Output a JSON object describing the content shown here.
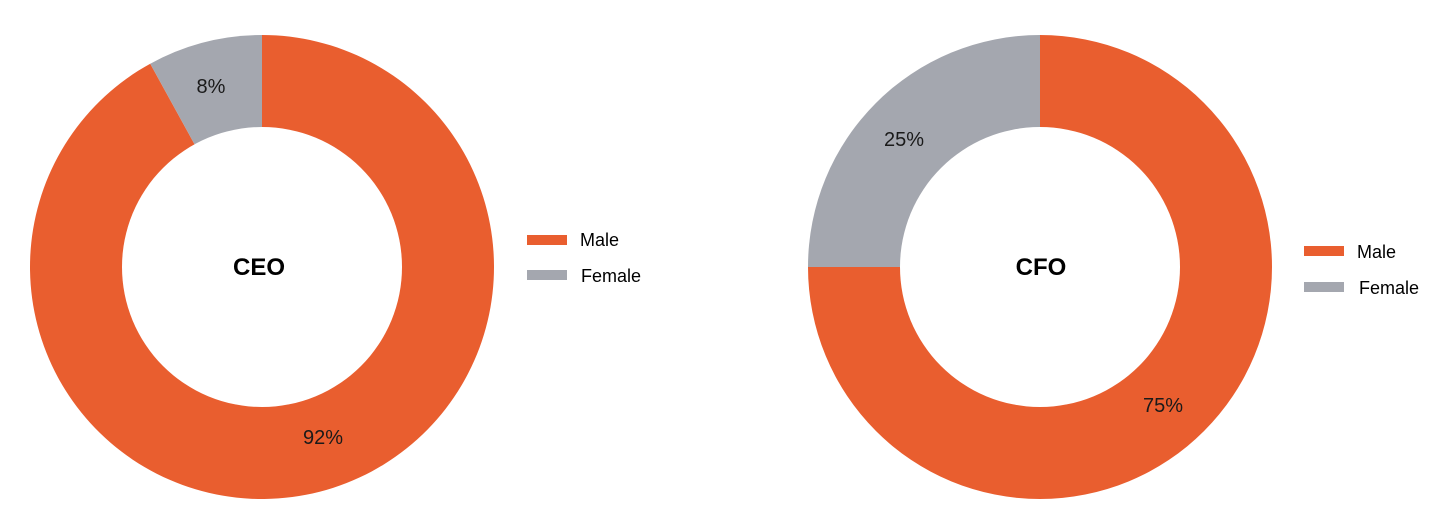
{
  "colors": {
    "male": "#E95E2F",
    "female": "#A4A7AF",
    "background": "#FFFFFF"
  },
  "chart_data": [
    {
      "type": "pie",
      "variant": "donut",
      "title": "CEO",
      "categories": [
        "Male",
        "Female"
      ],
      "values": [
        92,
        8
      ],
      "labels": [
        "92%",
        "8%"
      ],
      "unit": "%",
      "legend": [
        "Male",
        "Female"
      ],
      "legend_position": "right"
    },
    {
      "type": "pie",
      "variant": "donut",
      "title": "CFO",
      "categories": [
        "Male",
        "Female"
      ],
      "values": [
        75,
        25
      ],
      "labels": [
        "75%",
        "25%"
      ],
      "unit": "%",
      "legend": [
        "Male",
        "Female"
      ],
      "legend_position": "right"
    }
  ]
}
